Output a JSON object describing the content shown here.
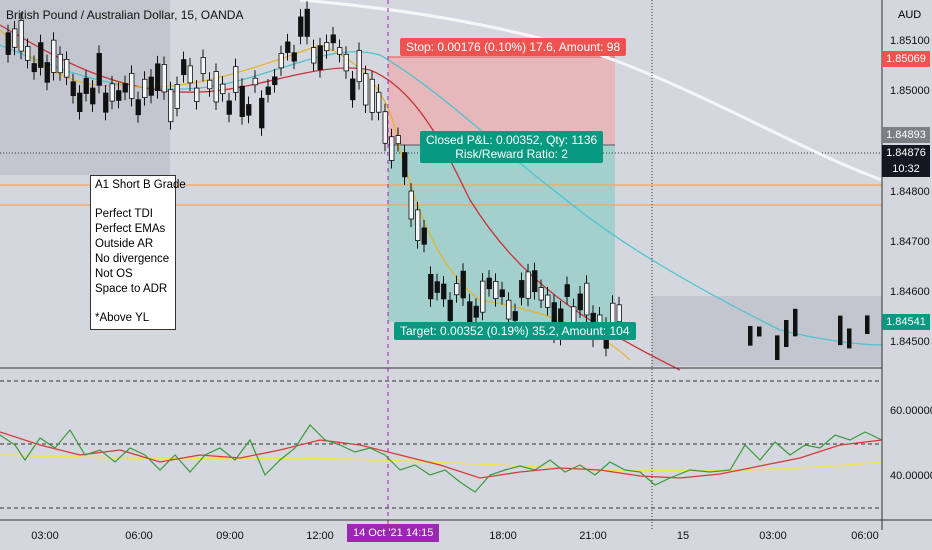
{
  "symbol_title": "British Pound / Australian Dollar, 15, OANDA",
  "currency": "AUD",
  "price_axis": [
    "1.85100",
    "1.85000",
    "1.84800",
    "1.84700",
    "1.84600",
    "1.84500"
  ],
  "price_tags": {
    "stop": "1.85069",
    "gray": "1.84893",
    "current": "1.84876",
    "countdown": "10:32",
    "target": "1.84541"
  },
  "indicator_axis": [
    "60.00000",
    "40.00000"
  ],
  "time_axis": [
    "03:00",
    "06:00",
    "09:00",
    "12:00",
    "18:00",
    "21:00",
    "15",
    "03:00",
    "06:00"
  ],
  "cursor_time": "14 Oct '21   14:15",
  "position": {
    "stop_label": "Stop: 0.00176 (0.10%) 17.6, Amount: 98",
    "pnl_line1": "Closed P&L: 0.00352, Qty: 1136",
    "pnl_line2": "Risk/Reward Ratio: 2",
    "target_label": "Target: 0.00352 (0.19%) 35.2, Amount: 104"
  },
  "note": {
    "title": "A1 Short B Grade",
    "lines": [
      "Perfect TDI",
      "Perfect EMAs",
      "Outside AR",
      "No divergence",
      "Not OS",
      "Space to ADR"
    ],
    "footer": "*Above YL"
  },
  "colors": {
    "stop_red": "#ef5350",
    "target_teal": "#089981",
    "cursor_purple": "#9c27b0",
    "ema_red": "#c8323a",
    "ema_cyan": "#4dc3d0",
    "ema_yellow": "#e6b422",
    "horizontal_orange": "#f7a35c"
  }
}
